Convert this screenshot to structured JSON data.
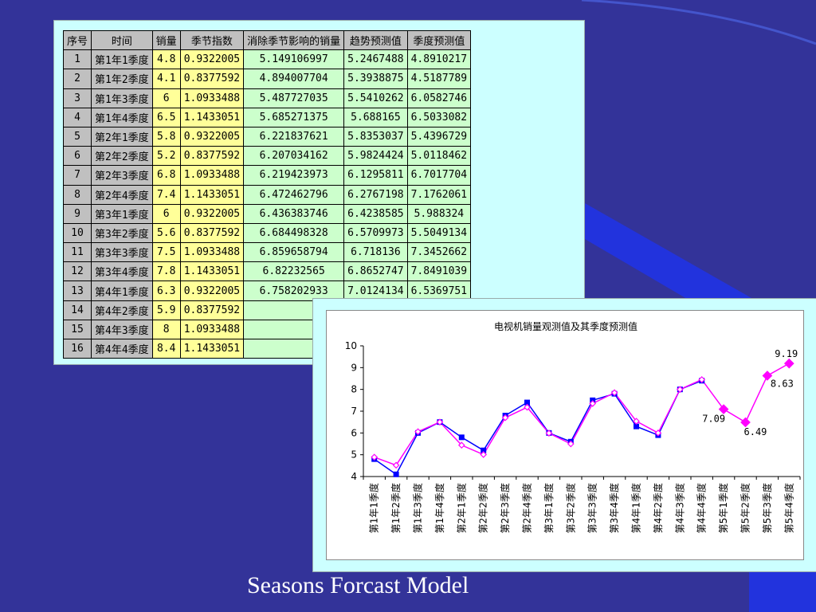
{
  "colors": {
    "background": "#333399",
    "accent_stripe": "#2233dd",
    "panel": "#ccffff",
    "header_cell": "#c0c0c0",
    "yellow_cell": "#ffff99",
    "green_cell": "#ccffcc",
    "observed_series": "#0000ff",
    "forecast_series": "#ff00ff"
  },
  "table": {
    "headers": [
      "序号",
      "时间",
      "销量",
      "季节指数",
      "消除季节影响的销量",
      "趋势预测值",
      "季度预测值"
    ],
    "rows": [
      [
        "1",
        "第1年1季度",
        "4.8",
        "0.9322005",
        "5.149106997",
        "5.2467488",
        "4.8910217"
      ],
      [
        "2",
        "第1年2季度",
        "4.1",
        "0.8377592",
        "4.894007704",
        "5.3938875",
        "4.5187789"
      ],
      [
        "3",
        "第1年3季度",
        "6",
        "1.0933488",
        "5.487727035",
        "5.5410262",
        "6.0582746"
      ],
      [
        "4",
        "第1年4季度",
        "6.5",
        "1.1433051",
        "5.685271375",
        "5.688165",
        "6.5033082"
      ],
      [
        "5",
        "第2年1季度",
        "5.8",
        "0.9322005",
        "6.221837621",
        "5.8353037",
        "5.4396729"
      ],
      [
        "6",
        "第2年2季度",
        "5.2",
        "0.8377592",
        "6.207034162",
        "5.9824424",
        "5.0118462"
      ],
      [
        "7",
        "第2年3季度",
        "6.8",
        "1.0933488",
        "6.219423973",
        "6.1295811",
        "6.7017704"
      ],
      [
        "8",
        "第2年4季度",
        "7.4",
        "1.1433051",
        "6.472462796",
        "6.2767198",
        "7.1762061"
      ],
      [
        "9",
        "第3年1季度",
        "6",
        "0.9322005",
        "6.436383746",
        "6.4238585",
        "5.988324"
      ],
      [
        "10",
        "第3年2季度",
        "5.6",
        "0.8377592",
        "6.684498328",
        "6.5709973",
        "5.5049134"
      ],
      [
        "11",
        "第3年3季度",
        "7.5",
        "1.0933488",
        "6.859658794",
        "6.718136",
        "7.3452662"
      ],
      [
        "12",
        "第3年4季度",
        "7.8",
        "1.1433051",
        "6.82232565",
        "6.8652747",
        "7.8491039"
      ],
      [
        "13",
        "第4年1季度",
        "6.3",
        "0.9322005",
        "6.758202933",
        "7.0124134",
        "6.5369751"
      ],
      [
        "14",
        "第4年2季度",
        "5.9",
        "0.8377592",
        "",
        "",
        ""
      ],
      [
        "15",
        "第4年3季度",
        "8",
        "1.0933488",
        "",
        "",
        ""
      ],
      [
        "16",
        "第4年4季度",
        "8.4",
        "1.1433051",
        "",
        "",
        ""
      ]
    ]
  },
  "chart_data": {
    "type": "line",
    "title": "电视机销量观测值及其季度预测值",
    "categories": [
      "第1年1季度",
      "第1年2季度",
      "第1年3季度",
      "第1年4季度",
      "第2年1季度",
      "第2年2季度",
      "第2年3季度",
      "第2年4季度",
      "第3年1季度",
      "第3年2季度",
      "第3年3季度",
      "第3年4季度",
      "第4年1季度",
      "第4年2季度",
      "第4年3季度",
      "第4年4季度",
      "第5年1季度",
      "第5年2季度",
      "第5年3季度",
      "第5年4季度"
    ],
    "ylim": [
      4,
      10
    ],
    "yticks": [
      "4",
      "5",
      "6",
      "7",
      "8",
      "9",
      "10"
    ],
    "series": [
      {
        "values": [
          4.8,
          4.1,
          6,
          6.5,
          5.8,
          5.2,
          6.8,
          7.4,
          6,
          5.6,
          7.5,
          7.8,
          6.3,
          5.9,
          8,
          8.4,
          null,
          null,
          null,
          null
        ],
        "marker": "square"
      },
      {
        "values": [
          4.89,
          4.52,
          6.06,
          6.5,
          5.44,
          5.01,
          6.7,
          7.18,
          5.99,
          5.5,
          7.35,
          7.85,
          6.54,
          6.0,
          8.0,
          8.45,
          7.09,
          6.49,
          8.63,
          9.19
        ],
        "marker": "diamond"
      }
    ],
    "annotations": [
      "7.09",
      "6.49",
      "8.63",
      "9.19"
    ],
    "grid": false
  },
  "caption": "Seasons Forcast Model"
}
